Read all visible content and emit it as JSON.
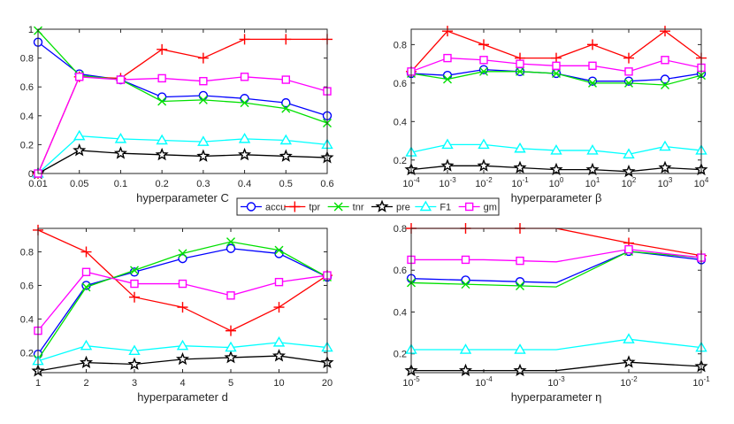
{
  "legend": [
    {
      "key": "accu",
      "label": "accu",
      "color": "#0000ff",
      "marker": "circle"
    },
    {
      "key": "tpr",
      "label": "tpr",
      "color": "#ff0000",
      "marker": "plus"
    },
    {
      "key": "tnr",
      "label": "tnr",
      "color": "#00e000",
      "marker": "cross"
    },
    {
      "key": "pre",
      "label": "pre",
      "color": "#000000",
      "marker": "star"
    },
    {
      "key": "F1",
      "label": "F1",
      "color": "#00ffff",
      "marker": "triangle"
    },
    {
      "key": "gm",
      "label": "gm",
      "color": "#ff00ff",
      "marker": "square"
    }
  ],
  "chart_data": [
    {
      "type": "line",
      "xlabel": "hyperparameter C",
      "categories": [
        "0.01",
        "0.05",
        "0.1",
        "0.2",
        "0.3",
        "0.4",
        "0.5",
        "0.6"
      ],
      "ylim": [
        0,
        1
      ],
      "yticks": [
        "0",
        "0.2",
        "0.4",
        "0.6",
        "0.8",
        "1"
      ],
      "ytick_values": [
        0,
        0.2,
        0.4,
        0.6,
        0.8,
        1
      ],
      "series": [
        {
          "name": "accu",
          "values": [
            0.91,
            0.69,
            0.65,
            0.53,
            0.54,
            0.52,
            0.49,
            0.4
          ]
        },
        {
          "name": "tpr",
          "values": [
            0.0,
            0.67,
            0.66,
            0.86,
            0.8,
            0.93,
            0.93,
            0.93
          ]
        },
        {
          "name": "tnr",
          "values": [
            0.99,
            0.68,
            0.65,
            0.5,
            0.51,
            0.49,
            0.45,
            0.35
          ]
        },
        {
          "name": "pre",
          "values": [
            0.0,
            0.16,
            0.14,
            0.13,
            0.12,
            0.13,
            0.12,
            0.11
          ]
        },
        {
          "name": "F1",
          "values": [
            0.0,
            0.26,
            0.24,
            0.23,
            0.22,
            0.24,
            0.23,
            0.2
          ]
        },
        {
          "name": "gm",
          "values": [
            0.0,
            0.67,
            0.65,
            0.66,
            0.64,
            0.67,
            0.65,
            0.57
          ]
        }
      ]
    },
    {
      "type": "line",
      "xlabel": "hyperparameter β",
      "categories": [
        {
          "base": "10",
          "exp": "-4"
        },
        {
          "base": "10",
          "exp": "-3"
        },
        {
          "base": "10",
          "exp": "-2"
        },
        {
          "base": "10",
          "exp": "-1"
        },
        {
          "base": "10",
          "exp": "0"
        },
        {
          "base": "10",
          "exp": "1"
        },
        {
          "base": "10",
          "exp": "2"
        },
        {
          "base": "10",
          "exp": "3"
        },
        {
          "base": "10",
          "exp": "4"
        }
      ],
      "ylim": [
        0.13,
        0.88
      ],
      "yticks": [
        "0.2",
        "0.4",
        "0.6",
        "0.8"
      ],
      "ytick_values": [
        0.2,
        0.4,
        0.6,
        0.8
      ],
      "series": [
        {
          "name": "accu",
          "values": [
            0.65,
            0.64,
            0.67,
            0.66,
            0.65,
            0.61,
            0.61,
            0.62,
            0.65
          ]
        },
        {
          "name": "tpr",
          "values": [
            0.66,
            0.87,
            0.8,
            0.73,
            0.73,
            0.8,
            0.73,
            0.87,
            0.73
          ]
        },
        {
          "name": "tnr",
          "values": [
            0.65,
            0.62,
            0.66,
            0.66,
            0.65,
            0.6,
            0.6,
            0.59,
            0.64
          ]
        },
        {
          "name": "pre",
          "values": [
            0.15,
            0.17,
            0.17,
            0.16,
            0.15,
            0.15,
            0.14,
            0.16,
            0.15
          ]
        },
        {
          "name": "F1",
          "values": [
            0.24,
            0.28,
            0.28,
            0.26,
            0.25,
            0.25,
            0.23,
            0.27,
            0.25
          ]
        },
        {
          "name": "gm",
          "values": [
            0.66,
            0.73,
            0.72,
            0.7,
            0.69,
            0.69,
            0.66,
            0.72,
            0.68
          ]
        }
      ]
    },
    {
      "type": "line",
      "xlabel": "hyperparameter d",
      "categories": [
        "1",
        "2",
        "3",
        "4",
        "5",
        "10",
        "20"
      ],
      "ylim": [
        0.08,
        0.94
      ],
      "yticks": [
        "0.2",
        "0.4",
        "0.6",
        "0.8"
      ],
      "ytick_values": [
        0.2,
        0.4,
        0.6,
        0.8
      ],
      "series": [
        {
          "name": "accu",
          "values": [
            0.19,
            0.6,
            0.68,
            0.76,
            0.82,
            0.79,
            0.65
          ]
        },
        {
          "name": "tpr",
          "values": [
            0.93,
            0.8,
            0.53,
            0.47,
            0.33,
            0.47,
            0.66
          ]
        },
        {
          "name": "tnr",
          "values": [
            0.16,
            0.59,
            0.69,
            0.79,
            0.86,
            0.81,
            0.65
          ]
        },
        {
          "name": "pre",
          "values": [
            0.09,
            0.14,
            0.13,
            0.16,
            0.17,
            0.18,
            0.14
          ]
        },
        {
          "name": "F1",
          "values": [
            0.15,
            0.24,
            0.21,
            0.24,
            0.23,
            0.26,
            0.23
          ]
        },
        {
          "name": "gm",
          "values": [
            0.33,
            0.68,
            0.61,
            0.61,
            0.54,
            0.62,
            0.66
          ]
        }
      ]
    },
    {
      "type": "line",
      "xlabel": "hyperparameter η",
      "categories": [
        {
          "base": "10",
          "exp": "-5"
        },
        {
          "base": "10",
          "exp": "-4"
        },
        {
          "base": "10",
          "exp": "-3"
        },
        {
          "base": "10",
          "exp": "-2"
        },
        {
          "base": "10",
          "exp": "-1"
        }
      ],
      "x_positions": [
        0,
        1,
        2,
        3,
        4
      ],
      "marker_x": [
        0,
        0.75,
        1.5,
        3,
        4
      ],
      "ylim": [
        0.11,
        0.8
      ],
      "yticks": [
        "0.2",
        "0.4",
        "0.6",
        "0.8"
      ],
      "ytick_values": [
        0.2,
        0.4,
        0.6,
        0.8
      ],
      "series": [
        {
          "name": "accu",
          "values": [
            0.56,
            0.55,
            0.54,
            0.69,
            0.65
          ]
        },
        {
          "name": "tpr",
          "values": [
            0.8,
            0.8,
            0.8,
            0.73,
            0.67
          ]
        },
        {
          "name": "tnr",
          "values": [
            0.54,
            0.53,
            0.52,
            0.69,
            0.66
          ]
        },
        {
          "name": "pre",
          "values": [
            0.12,
            0.12,
            0.12,
            0.16,
            0.14
          ]
        },
        {
          "name": "F1",
          "values": [
            0.22,
            0.22,
            0.22,
            0.27,
            0.23
          ]
        },
        {
          "name": "gm",
          "values": [
            0.65,
            0.65,
            0.64,
            0.7,
            0.66
          ]
        }
      ]
    }
  ]
}
